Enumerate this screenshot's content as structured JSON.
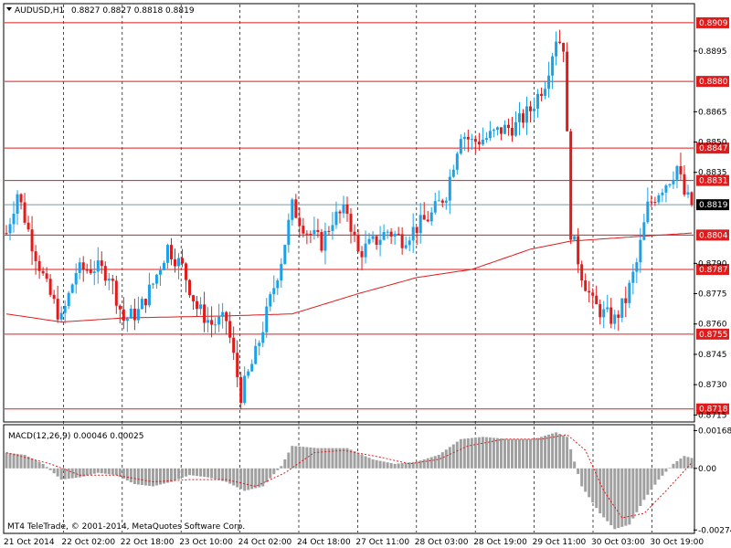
{
  "header": {
    "symbol": "AUDUSD,H1",
    "ohlc": "0.8827 0.8827 0.8818 0.8819"
  },
  "indicator": {
    "label": "MACD(12,26,9) 0.00046 0.00025",
    "copyright": "MT4 TeleTrade, © 2001-2014, MetaQuotes Software Corp."
  },
  "colors": {
    "bull": "#1aa1e8",
    "bear": "#e01b1b",
    "ma": "#e01b1b",
    "level": "#e01b1b",
    "current": "#7f99a8",
    "grid": "#000000",
    "macd_hist": "#a0a0a0",
    "macd_signal": "#e01b1b"
  },
  "chart_data": {
    "type": "candlestick",
    "grid": "dashed vertical",
    "price_axis": {
      "ylim": [
        0.8712,
        0.8918
      ],
      "ticks": [
        "0.8895",
        "0.8865",
        "0.8850",
        "0.8835",
        "0.8790",
        "0.8775",
        "0.8760",
        "0.8745",
        "0.8730",
        "0.8715"
      ]
    },
    "levels": [
      {
        "label": "0.8909",
        "value": 0.8909
      },
      {
        "label": "0.8880",
        "value": 0.888
      },
      {
        "label": "0.8847",
        "value": 0.8847
      },
      {
        "label": "0.8831",
        "value": 0.8831
      },
      {
        "label": "0.8804",
        "value": 0.8804
      },
      {
        "label": "0.8787",
        "value": 0.8787
      },
      {
        "label": "0.8755",
        "value": 0.8755
      },
      {
        "label": "0.8718",
        "value": 0.8718
      }
    ],
    "current_price": {
      "label": "0.8819",
      "value": 0.8819
    },
    "time_labels": [
      "21 Oct 2014",
      "22 Oct 02:00",
      "22 Oct 18:00",
      "23 Oct 10:00",
      "24 Oct 02:00",
      "24 Oct 18:00",
      "27 Oct 11:00",
      "28 Oct 03:00",
      "28 Oct 19:00",
      "29 Oct 11:00",
      "30 Oct 03:00",
      "30 Oct 19:00"
    ],
    "anchors": [
      [
        0,
        0.8805
      ],
      [
        3,
        0.8825
      ],
      [
        7,
        0.88
      ],
      [
        11,
        0.8778
      ],
      [
        15,
        0.8762
      ],
      [
        19,
        0.8786
      ],
      [
        24,
        0.8788
      ],
      [
        28,
        0.8785
      ],
      [
        32,
        0.8762
      ],
      [
        36,
        0.8766
      ],
      [
        40,
        0.878
      ],
      [
        44,
        0.8798
      ],
      [
        48,
        0.8788
      ],
      [
        52,
        0.8768
      ],
      [
        56,
        0.876
      ],
      [
        60,
        0.8762
      ],
      [
        64,
        0.8725
      ],
      [
        68,
        0.8745
      ],
      [
        71,
        0.8765
      ],
      [
        75,
        0.8792
      ],
      [
        78,
        0.8818
      ],
      [
        82,
        0.8806
      ],
      [
        86,
        0.88
      ],
      [
        89,
        0.8812
      ],
      [
        93,
        0.8816
      ],
      [
        96,
        0.8795
      ],
      [
        100,
        0.88
      ],
      [
        104,
        0.8806
      ],
      [
        108,
        0.8802
      ],
      [
        112,
        0.8808
      ],
      [
        116,
        0.8814
      ],
      [
        120,
        0.8825
      ],
      [
        124,
        0.8855
      ],
      [
        127,
        0.885
      ],
      [
        131,
        0.8852
      ],
      [
        135,
        0.8856
      ],
      [
        139,
        0.8858
      ],
      [
        143,
        0.8866
      ],
      [
        147,
        0.888
      ],
      [
        150,
        0.8902
      ],
      [
        152,
        0.8898
      ],
      [
        154,
        0.8806
      ],
      [
        157,
        0.8785
      ],
      [
        160,
        0.877
      ],
      [
        163,
        0.8765
      ],
      [
        166,
        0.8762
      ],
      [
        169,
        0.8772
      ],
      [
        172,
        0.879
      ],
      [
        175,
        0.8818
      ],
      [
        178,
        0.8826
      ],
      [
        181,
        0.8832
      ],
      [
        183,
        0.8838
      ],
      [
        185,
        0.8824
      ],
      [
        187,
        0.8819
      ]
    ],
    "ma_anchors": [
      [
        0,
        0.8765
      ],
      [
        15,
        0.8761
      ],
      [
        32,
        0.8763
      ],
      [
        60,
        0.8764
      ],
      [
        78,
        0.8765
      ],
      [
        96,
        0.8775
      ],
      [
        112,
        0.8783
      ],
      [
        127,
        0.8787
      ],
      [
        143,
        0.8797
      ],
      [
        154,
        0.8801
      ],
      [
        170,
        0.8803
      ],
      [
        187,
        0.8805
      ]
    ],
    "macd": {
      "ylim": [
        -0.00285,
        0.0019
      ],
      "ticks": [
        "0.00168",
        "0.00",
        "-0.00274"
      ],
      "hist_anchors": [
        [
          0,
          0.0007
        ],
        [
          5,
          0.0006
        ],
        [
          10,
          0.0002
        ],
        [
          15,
          -0.0005
        ],
        [
          20,
          -0.0004
        ],
        [
          25,
          -0.0002
        ],
        [
          30,
          -0.0003
        ],
        [
          35,
          -0.0007
        ],
        [
          40,
          -0.0008
        ],
        [
          45,
          -0.0006
        ],
        [
          50,
          -0.0003
        ],
        [
          55,
          -0.0004
        ],
        [
          60,
          -0.0006
        ],
        [
          65,
          -0.001
        ],
        [
          70,
          -0.0008
        ],
        [
          75,
          0.0001
        ],
        [
          78,
          0.001
        ],
        [
          85,
          0.0009
        ],
        [
          93,
          0.0009
        ],
        [
          100,
          0.0004
        ],
        [
          106,
          0.0002
        ],
        [
          112,
          0.0003
        ],
        [
          118,
          0.0006
        ],
        [
          124,
          0.0013
        ],
        [
          130,
          0.0014
        ],
        [
          137,
          0.0013
        ],
        [
          144,
          0.0013
        ],
        [
          150,
          0.0016
        ],
        [
          153,
          0.0014
        ],
        [
          157,
          -0.0008
        ],
        [
          162,
          -0.002
        ],
        [
          166,
          -0.0027
        ],
        [
          170,
          -0.0025
        ],
        [
          174,
          -0.0014
        ],
        [
          178,
          -0.0005
        ],
        [
          182,
          0.0002
        ],
        [
          185,
          0.00055
        ],
        [
          187,
          0.00046
        ]
      ],
      "signal_anchors": [
        [
          0,
          0.0007
        ],
        [
          12,
          0.0002
        ],
        [
          20,
          -0.0003
        ],
        [
          30,
          -0.0003
        ],
        [
          40,
          -0.0006
        ],
        [
          50,
          -0.0005
        ],
        [
          60,
          -0.0005
        ],
        [
          68,
          -0.0008
        ],
        [
          76,
          -0.0002
        ],
        [
          84,
          0.0007
        ],
        [
          92,
          0.0008
        ],
        [
          102,
          0.0005
        ],
        [
          110,
          0.0002
        ],
        [
          118,
          0.0004
        ],
        [
          126,
          0.001
        ],
        [
          136,
          0.0013
        ],
        [
          146,
          0.0013
        ],
        [
          153,
          0.0015
        ],
        [
          158,
          0.0008
        ],
        [
          163,
          -0.001
        ],
        [
          168,
          -0.0022
        ],
        [
          174,
          -0.002
        ],
        [
          180,
          -0.001
        ],
        [
          187,
          0.00025
        ]
      ]
    }
  }
}
